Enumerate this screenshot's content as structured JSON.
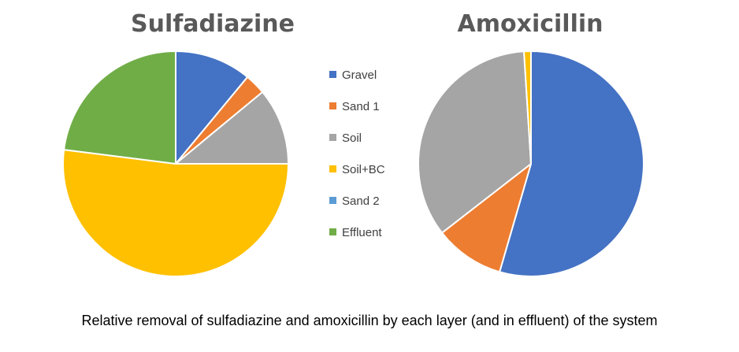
{
  "legend": [
    {
      "label": "Gravel",
      "color": "#4472C4"
    },
    {
      "label": "Sand 1",
      "color": "#ED7D31"
    },
    {
      "label": "Soil",
      "color": "#A5A5A5"
    },
    {
      "label": "Soil+BC",
      "color": "#FFC000"
    },
    {
      "label": "Sand 2",
      "color": "#5B9BD5"
    },
    {
      "label": "Effluent",
      "color": "#70AD47"
    }
  ],
  "caption": "Relative removal of sulfadiazine and amoxicillin by each layer (and in effluent) of the system",
  "chart_data": [
    {
      "type": "pie",
      "title": "Sulfadiazine",
      "categories": [
        "Gravel",
        "Sand 1",
        "Soil",
        "Soil+BC",
        "Sand 2",
        "Effluent"
      ],
      "values": [
        11,
        3,
        11,
        52,
        0,
        23
      ],
      "start_angle_deg": 0,
      "direction": "clockwise"
    },
    {
      "type": "pie",
      "title": "Amoxicillin",
      "categories": [
        "Gravel",
        "Sand 1",
        "Soil",
        "Soil+BC",
        "Sand 2",
        "Effluent"
      ],
      "values": [
        54.5,
        10,
        34.5,
        1,
        0,
        0
      ],
      "start_angle_deg": 0,
      "direction": "clockwise"
    }
  ]
}
